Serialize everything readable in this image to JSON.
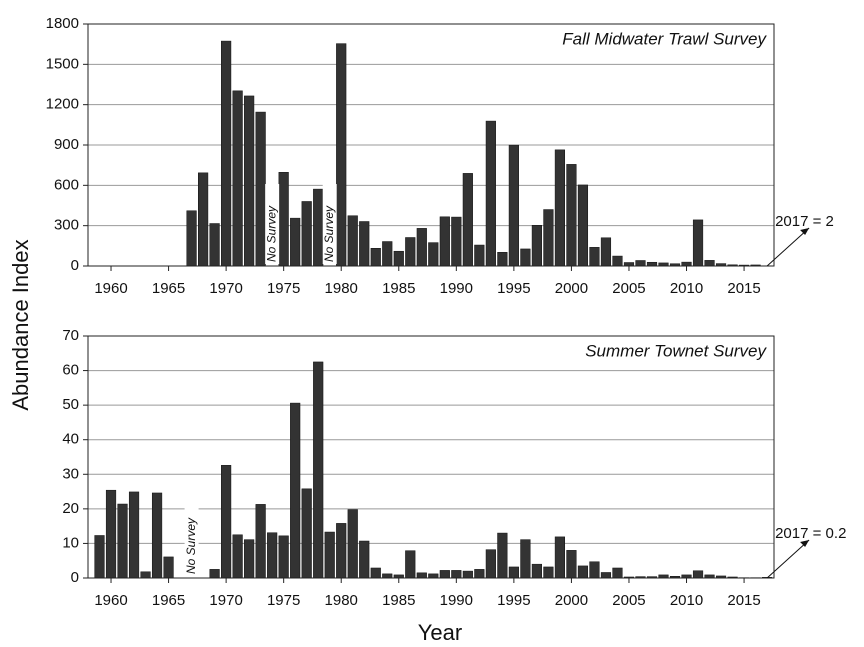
{
  "chart_data": [
    {
      "type": "bar",
      "title": "Fall Midwater Trawl Survey",
      "ylabel": "Abundance Index",
      "x": [
        1967,
        1968,
        1969,
        1970,
        1971,
        1972,
        1973,
        1974,
        1975,
        1976,
        1977,
        1978,
        1979,
        1980,
        1981,
        1982,
        1983,
        1984,
        1985,
        1986,
        1987,
        1988,
        1989,
        1990,
        1991,
        1992,
        1993,
        1994,
        1995,
        1996,
        1997,
        1998,
        1999,
        2000,
        2001,
        2002,
        2003,
        2004,
        2005,
        2006,
        2007,
        2008,
        2009,
        2010,
        2011,
        2012,
        2013,
        2014,
        2015,
        2016,
        2017
      ],
      "values": [
        411,
        693,
        316,
        1673,
        1303,
        1265,
        1145,
        null,
        697,
        356,
        480,
        572,
        null,
        1654,
        374,
        331,
        132,
        182,
        110,
        212,
        280,
        174,
        366,
        364,
        689,
        156,
        1078,
        102,
        899,
        127,
        303,
        420,
        864,
        756,
        603,
        139,
        210,
        74,
        26,
        41,
        28,
        23,
        17,
        29,
        343,
        42,
        18,
        9,
        7,
        8,
        2
      ],
      "color": "#333333",
      "xlim": [
        1958,
        2017.6
      ],
      "xticks": [
        1960,
        1965,
        1970,
        1975,
        1980,
        1985,
        1990,
        1995,
        2000,
        2005,
        2010,
        2015
      ],
      "ylim": [
        0,
        1800
      ],
      "yticks": [
        0,
        300,
        600,
        900,
        1200,
        1500,
        1800
      ],
      "grid": true,
      "annotations": [
        {
          "text": "No Survey",
          "x": 1974
        },
        {
          "text": "No Survey",
          "x": 1979
        },
        {
          "text": "2017 = 2",
          "x": 2017
        }
      ]
    },
    {
      "type": "bar",
      "title": "Summer Townet Survey",
      "xlabel": "Year",
      "x": [
        1959,
        1960,
        1961,
        1962,
        1963,
        1964,
        1965,
        1966,
        1967,
        1968,
        1969,
        1970,
        1971,
        1972,
        1973,
        1974,
        1975,
        1976,
        1977,
        1978,
        1979,
        1980,
        1981,
        1982,
        1983,
        1984,
        1985,
        1986,
        1987,
        1988,
        1989,
        1990,
        1991,
        1992,
        1993,
        1994,
        1995,
        1996,
        1997,
        1998,
        1999,
        2000,
        2001,
        2002,
        2003,
        2004,
        2005,
        2006,
        2007,
        2008,
        2009,
        2010,
        2011,
        2012,
        2013,
        2014,
        2015,
        2016,
        2017
      ],
      "values": [
        12.3,
        25.4,
        21.4,
        24.9,
        1.8,
        24.6,
        6.1,
        null,
        null,
        null,
        2.5,
        32.6,
        12.5,
        11.1,
        21.3,
        13.1,
        12.2,
        50.6,
        25.8,
        62.5,
        13.3,
        15.8,
        19.8,
        10.7,
        2.9,
        1.2,
        0.9,
        7.9,
        1.5,
        1.2,
        2.2,
        2.2,
        2.0,
        2.5,
        8.2,
        13.0,
        3.2,
        11.1,
        4.0,
        3.2,
        11.9,
        8.0,
        3.5,
        4.7,
        1.6,
        2.9,
        0.3,
        0.4,
        0.4,
        0.9,
        0.5,
        0.9,
        2.1,
        0.9,
        0.6,
        0.3,
        0.1,
        0.1,
        0.2
      ],
      "color": "#333333",
      "xlim": [
        1958,
        2017.6
      ],
      "xticks": [
        1960,
        1965,
        1970,
        1975,
        1980,
        1985,
        1990,
        1995,
        2000,
        2005,
        2010,
        2015
      ],
      "ylim": [
        0,
        70
      ],
      "yticks": [
        0,
        10,
        20,
        30,
        40,
        50,
        60,
        70
      ],
      "grid": true,
      "annotations": [
        {
          "text": "No Survey",
          "x": 1967
        },
        {
          "text": "2017 = 0.2",
          "x": 2017
        }
      ]
    }
  ]
}
